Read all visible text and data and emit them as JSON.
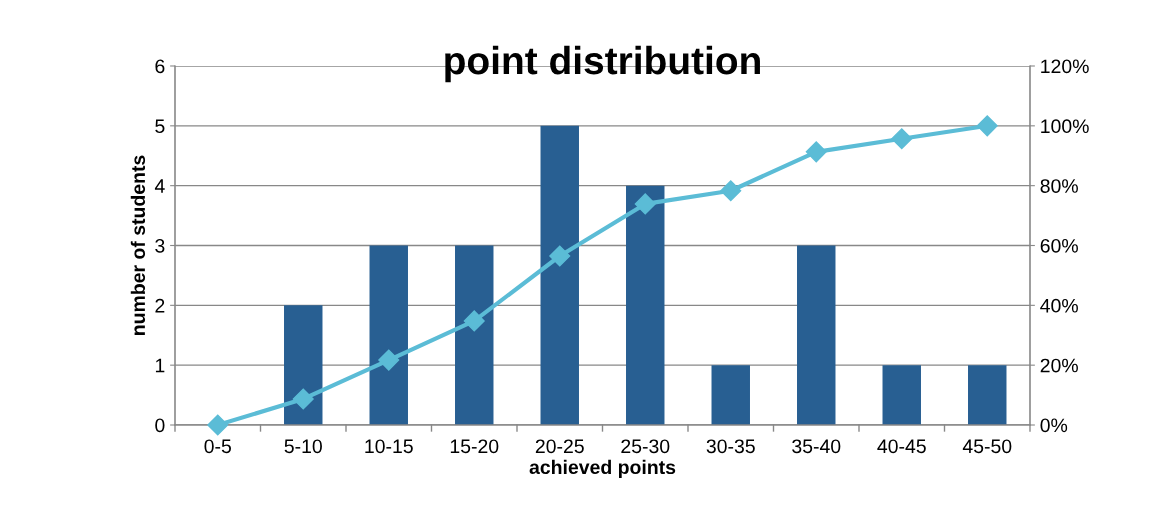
{
  "chart_data": {
    "type": "bar",
    "title": "point distribution",
    "xlabel": "achieved points",
    "ylabel": "number of students",
    "categories": [
      "0-5",
      "5-10",
      "10-15",
      "15-20",
      "20-25",
      "25-30",
      "30-35",
      "35-40",
      "40-45",
      "45-50"
    ],
    "series": [
      {
        "color": "#285f92",
        "values": [
          0,
          2,
          3,
          3,
          5,
          4,
          1,
          3,
          1,
          1
        ]
      },
      {
        "type": "line",
        "axis": "y2",
        "color": "#5bbcd6",
        "marker": "diamond",
        "values": [
          0,
          8.7,
          21.7,
          34.8,
          56.5,
          73.9,
          78.3,
          91.3,
          95.7,
          100
        ]
      }
    ],
    "ylim": [
      0,
      6
    ],
    "yticks": [
      0,
      1,
      2,
      3,
      4,
      5,
      6
    ],
    "y2lim": [
      0,
      120
    ],
    "y2ticks": [
      {
        "value": 0,
        "label": "0%"
      },
      {
        "value": 20,
        "label": "20%"
      },
      {
        "value": 40,
        "label": "40%"
      },
      {
        "value": 60,
        "label": "60%"
      },
      {
        "value": 80,
        "label": "80%"
      },
      {
        "value": 100,
        "label": "100%"
      },
      {
        "value": 120,
        "label": "120%"
      }
    ],
    "grid": "y",
    "legend": false
  }
}
